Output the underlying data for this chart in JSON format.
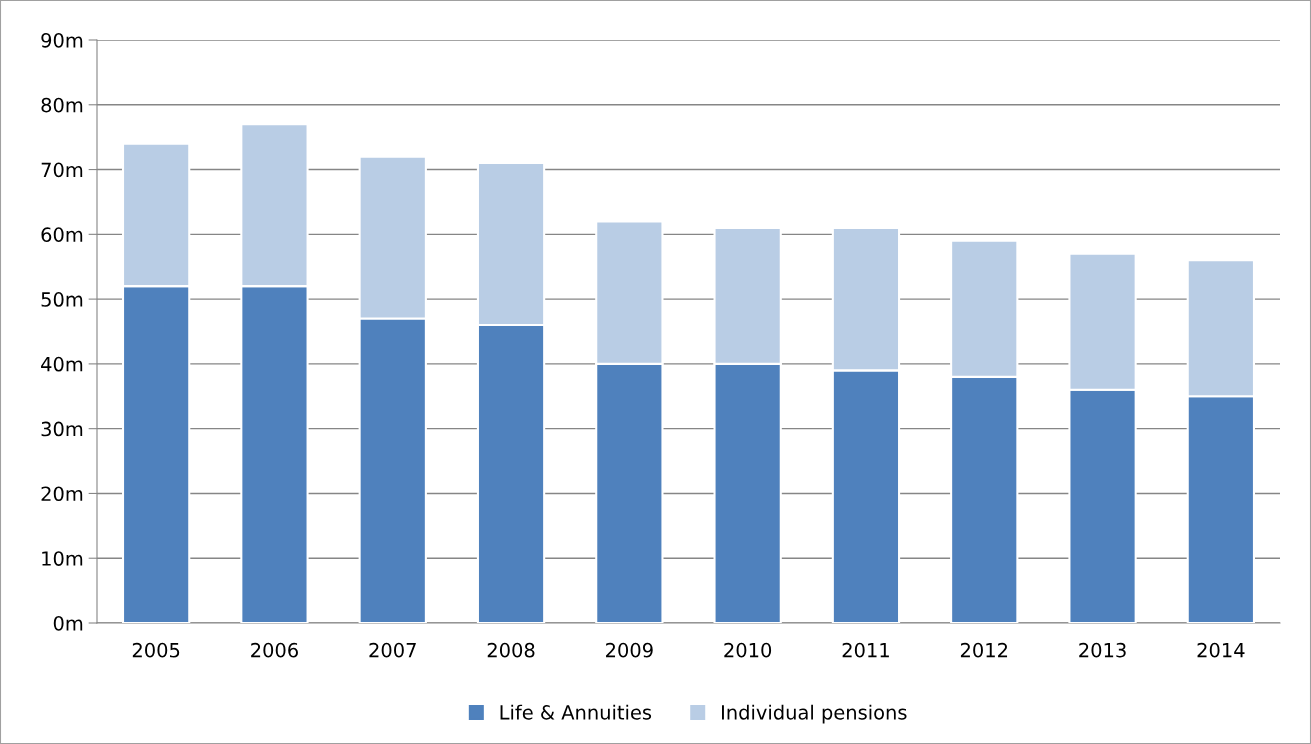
{
  "chart_data": {
    "type": "bar",
    "stacked": true,
    "categories": [
      "2005",
      "2006",
      "2007",
      "2008",
      "2009",
      "2010",
      "2011",
      "2012",
      "2013",
      "2014"
    ],
    "series": [
      {
        "name": "Life & Annuities",
        "color": "#4f81bd",
        "values": [
          52,
          52,
          47,
          46,
          40,
          40,
          39,
          38,
          36,
          35
        ]
      },
      {
        "name": "Individual pensions",
        "color": "#b9cde5",
        "values": [
          22,
          25,
          25,
          25,
          22,
          21,
          22,
          21,
          21,
          21
        ]
      }
    ],
    "ylim": [
      0,
      90
    ],
    "yticks": [
      {
        "value": 0,
        "label": "0m"
      },
      {
        "value": 10,
        "label": "10m"
      },
      {
        "value": 20,
        "label": "20m"
      },
      {
        "value": 30,
        "label": "30m"
      },
      {
        "value": 40,
        "label": "40m"
      },
      {
        "value": 50,
        "label": "50m"
      },
      {
        "value": 60,
        "label": "60m"
      },
      {
        "value": 70,
        "label": "70m"
      },
      {
        "value": 80,
        "label": "80m"
      },
      {
        "value": 90,
        "label": "90m"
      }
    ],
    "grid": "y",
    "legend": "bottom"
  }
}
